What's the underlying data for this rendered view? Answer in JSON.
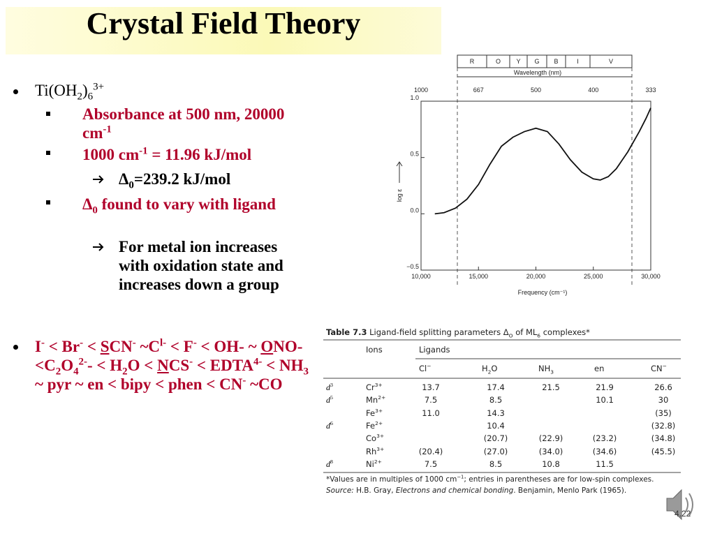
{
  "title": "Crystal Field Theory",
  "bullets": [
    {
      "text": [
        "Ti(OH",
        "2",
        ")",
        "6",
        "3+"
      ],
      "items": [
        {
          "text": [
            "Absorbance at 500 nm, 20000 cm",
            "-1"
          ]
        },
        {
          "text": [
            "1000 cm",
            "-1",
            " = 11.96 kJ/mol"
          ],
          "items": [
            {
              "text": [
                "Δ",
                "0",
                "=239.2 kJ/mol"
              ]
            }
          ]
        },
        {
          "text": [
            "Δ",
            "0",
            " found to vary with ligand"
          ],
          "items": [
            {
              "text": [
                "For metal ion increases with oxidation state and increases down a group"
              ]
            }
          ]
        }
      ]
    },
    {
      "text": [
        "I",
        "-",
        " < Br",
        "-",
        " < ",
        "S",
        "CN",
        "-",
        " ~C",
        "l-",
        " < F",
        "-",
        " < OH- ~ ",
        "O",
        "NO-<C",
        "2",
        "O",
        "4",
        "2-",
        "- < H",
        "2",
        "O < ",
        "N",
        "CS",
        "-",
        " < EDTA",
        "4-",
        " < NH",
        "3",
        " ~ pyr ~ en < bipy < phen < CN",
        "-",
        " ~CO"
      ]
    }
  ],
  "spectrum": {
    "bands": [
      "R",
      "O",
      "Y",
      "G",
      "B",
      "I",
      "V"
    ],
    "top_label": "Wavelength (nm)",
    "x_label": "Frequency (cm⁻¹)",
    "y_label": "log ε",
    "xlim": [
      10000,
      30000
    ],
    "ylim": [
      -0.5,
      1.0
    ],
    "xticks": [
      {
        "value": 10000,
        "label": "10,000"
      },
      {
        "value": 15000,
        "label": "15,000"
      },
      {
        "value": 20000,
        "label": "20,000"
      },
      {
        "value": 25000,
        "label": "25,000"
      },
      {
        "value": 30000,
        "label": "30,000"
      }
    ],
    "yticks": [
      {
        "value": -0.5,
        "label": "−0.5"
      },
      {
        "value": 0,
        "label": "0.0"
      },
      {
        "value": 0.5,
        "label": "0.5"
      },
      {
        "value": 1,
        "label": "1.0"
      }
    ],
    "wavelength_ticks": [
      {
        "value": 10000,
        "label": "1000"
      },
      {
        "value": 15000,
        "label": "667"
      },
      {
        "value": 20000,
        "label": "500"
      },
      {
        "value": 25000,
        "label": "400"
      },
      {
        "value": 30000,
        "label": "333"
      }
    ],
    "x": [
      11200,
      12000,
      13000,
      14000,
      15000,
      16000,
      17000,
      18000,
      19000,
      20000,
      21000,
      22000,
      23000,
      24000,
      25000,
      25600,
      26300,
      27000,
      28000,
      29000,
      29600,
      30000
    ],
    "y": [
      0,
      0.01,
      0.05,
      0.13,
      0.26,
      0.44,
      0.6,
      0.68,
      0.73,
      0.76,
      0.73,
      0.62,
      0.48,
      0.37,
      0.31,
      0.3,
      0.33,
      0.4,
      0.55,
      0.73,
      0.85,
      0.94
    ]
  },
  "table": {
    "caption": [
      "Table 7.3",
      "  Ligand-field splitting parameters Δ",
      "O",
      " of ML",
      "6",
      " complexes*"
    ],
    "header": {
      "ions": "Ions",
      "ligands": "Ligands",
      "columns": [
        [
          "Cl",
          "−"
        ],
        [
          "H",
          "2",
          "O"
        ],
        [
          "NH",
          "3"
        ],
        [
          "en"
        ],
        [
          "CN",
          "−"
        ]
      ]
    },
    "rows": [
      {
        "config": [
          "d",
          "3"
        ],
        "ion": [
          "Cr",
          "3+"
        ],
        "values": [
          "13.7",
          "17.4",
          "21.5",
          "21.9",
          "26.6"
        ]
      },
      {
        "config": [
          "d",
          "5"
        ],
        "ion": [
          "Mn",
          "2+"
        ],
        "values": [
          "7.5",
          "8.5",
          null,
          "10.1",
          "30"
        ]
      },
      {
        "config": null,
        "ion": [
          "Fe",
          "3+"
        ],
        "values": [
          "11.0",
          "14.3",
          null,
          null,
          "(35)"
        ]
      },
      {
        "config": [
          "d",
          "6"
        ],
        "ion": [
          "Fe",
          "2+"
        ],
        "values": [
          null,
          "10.4",
          null,
          null,
          "(32.8)"
        ]
      },
      {
        "config": null,
        "ion": [
          "Co",
          "3+"
        ],
        "values": [
          null,
          "(20.7)",
          "(22.9)",
          "(23.2)",
          "(34.8)"
        ]
      },
      {
        "config": null,
        "ion": [
          "Rh",
          "3+"
        ],
        "values": [
          "(20.4)",
          "(27.0)",
          "(34.0)",
          "(34.6)",
          "(45.5)"
        ]
      },
      {
        "config": [
          "d",
          "8"
        ],
        "ion": [
          "Ni",
          "2+"
        ],
        "values": [
          "7.5",
          "8.5",
          "10.8",
          "11.5",
          null
        ]
      }
    ],
    "footnote": [
      "*Values are in multiples of 1000 cm",
      "−1",
      "; entries in parentheses are for low-spin complexes."
    ],
    "source": [
      "Source:",
      " H.B. Gray, ",
      "Electrons and chemical bonding",
      ". Benjamin, Menlo Park (1965)."
    ]
  },
  "slide_number": "4.22"
}
